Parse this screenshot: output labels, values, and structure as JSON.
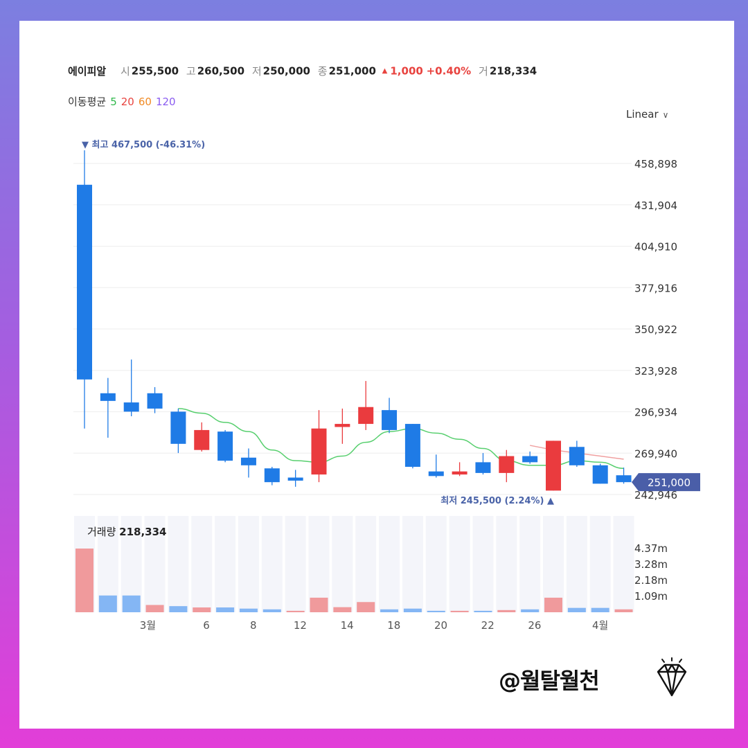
{
  "header": {
    "name": "에이피알",
    "open_label": "시",
    "open": "255,500",
    "high_label": "고",
    "high": "260,500",
    "low_label": "저",
    "low": "250,000",
    "close_label": "종",
    "close": "251,000",
    "change": "1,000",
    "change_pct": "+0.40%",
    "volume_label": "거",
    "volume": "218,334"
  },
  "ma_legend": {
    "label": "이동평균",
    "items": [
      "5",
      "20",
      "60",
      "120"
    ],
    "colors": [
      "#2fb84a",
      "#e8433f",
      "#f08a24",
      "#8a5cf0"
    ]
  },
  "scale_select": {
    "value": "Linear"
  },
  "watermark": "@월탈월천",
  "chart_data": {
    "type": "candlestick",
    "price_axis": {
      "ticks": [
        458898,
        431904,
        404910,
        377916,
        350922,
        323928,
        296934,
        269940,
        242946
      ],
      "tick_labels": [
        "458,898",
        "431,904",
        "404,910",
        "377,916",
        "350,922",
        "323,928",
        "296,934",
        "269,940",
        "242,946"
      ]
    },
    "current_price_label": "251,000",
    "max_marker": "최고 467,500 (-46.31%)",
    "min_marker": "최저 245,500 (2.24%)",
    "x_labels": [
      {
        "index": 2.7,
        "label": "3월"
      },
      {
        "index": 5.2,
        "label": "6"
      },
      {
        "index": 7.2,
        "label": "8"
      },
      {
        "index": 9.2,
        "label": "12"
      },
      {
        "index": 11.2,
        "label": "14"
      },
      {
        "index": 13.2,
        "label": "18"
      },
      {
        "index": 15.2,
        "label": "20"
      },
      {
        "index": 17.2,
        "label": "22"
      },
      {
        "index": 19.2,
        "label": "26"
      },
      {
        "index": 22.0,
        "label": "4월"
      }
    ],
    "candles": [
      {
        "o": 445000,
        "h": 467500,
        "l": 286000,
        "c": 318000
      },
      {
        "o": 309000,
        "h": 319000,
        "l": 280000,
        "c": 304000
      },
      {
        "o": 303000,
        "h": 331000,
        "l": 294000,
        "c": 297000
      },
      {
        "o": 309000,
        "h": 313000,
        "l": 296000,
        "c": 299000
      },
      {
        "o": 297000,
        "h": 299000,
        "l": 270000,
        "c": 276000
      },
      {
        "o": 272000,
        "h": 290000,
        "l": 271000,
        "c": 285000
      },
      {
        "o": 284000,
        "h": 285000,
        "l": 264000,
        "c": 265000
      },
      {
        "o": 267000,
        "h": 273000,
        "l": 254000,
        "c": 262000
      },
      {
        "o": 260000,
        "h": 261000,
        "l": 249000,
        "c": 251000
      },
      {
        "o": 254000,
        "h": 259000,
        "l": 248000,
        "c": 252000
      },
      {
        "o": 256000,
        "h": 298000,
        "l": 251000,
        "c": 286000
      },
      {
        "o": 287000,
        "h": 299000,
        "l": 276000,
        "c": 289000
      },
      {
        "o": 289000,
        "h": 317000,
        "l": 285000,
        "c": 300000
      },
      {
        "o": 298000,
        "h": 306000,
        "l": 283000,
        "c": 285000
      },
      {
        "o": 289000,
        "h": 289000,
        "l": 260000,
        "c": 261000
      },
      {
        "o": 258000,
        "h": 269000,
        "l": 254000,
        "c": 255000
      },
      {
        "o": 256000,
        "h": 264000,
        "l": 255000,
        "c": 258000
      },
      {
        "o": 264000,
        "h": 270000,
        "l": 256000,
        "c": 257000
      },
      {
        "o": 257000,
        "h": 272000,
        "l": 251000,
        "c": 268000
      },
      {
        "o": 268000,
        "h": 271000,
        "l": 263000,
        "c": 264000
      },
      {
        "o": 245500,
        "h": 278000,
        "l": 245500,
        "c": 278000
      },
      {
        "o": 274000,
        "h": 278000,
        "l": 261000,
        "c": 262000
      },
      {
        "o": 262000,
        "h": 263000,
        "l": 250000,
        "c": 250000
      },
      {
        "o": 255500,
        "h": 260500,
        "l": 250000,
        "c": 251000
      }
    ],
    "ma_5": [
      null,
      null,
      null,
      null,
      299000,
      296000,
      290000,
      284000,
      272000,
      265000,
      264000,
      268000,
      277000,
      284000,
      286000,
      283000,
      279000,
      273000,
      265000,
      262000,
      262000,
      265000,
      264000,
      260000
    ],
    "ma_20": [
      null,
      null,
      null,
      null,
      null,
      null,
      null,
      null,
      null,
      null,
      null,
      null,
      null,
      null,
      null,
      null,
      null,
      null,
      null,
      275000,
      272000,
      270000,
      268000,
      266000
    ],
    "volume": {
      "label": "거래량",
      "value": "218,334",
      "ticks": [
        4.37,
        3.28,
        2.18,
        1.09
      ],
      "tick_labels": [
        "4.37m",
        "3.28m",
        "2.18m",
        "1.09m"
      ],
      "values": [
        4.37,
        1.15,
        1.15,
        0.5,
        0.42,
        0.33,
        0.33,
        0.25,
        0.2,
        0.1,
        1.0,
        0.35,
        0.7,
        0.2,
        0.25,
        0.1,
        0.1,
        0.1,
        0.15,
        0.2,
        1.0,
        0.3,
        0.3,
        0.2
      ],
      "up": [
        true,
        false,
        false,
        true,
        false,
        true,
        false,
        false,
        false,
        true,
        true,
        true,
        true,
        false,
        false,
        false,
        true,
        false,
        true,
        false,
        true,
        false,
        false,
        true
      ]
    }
  }
}
